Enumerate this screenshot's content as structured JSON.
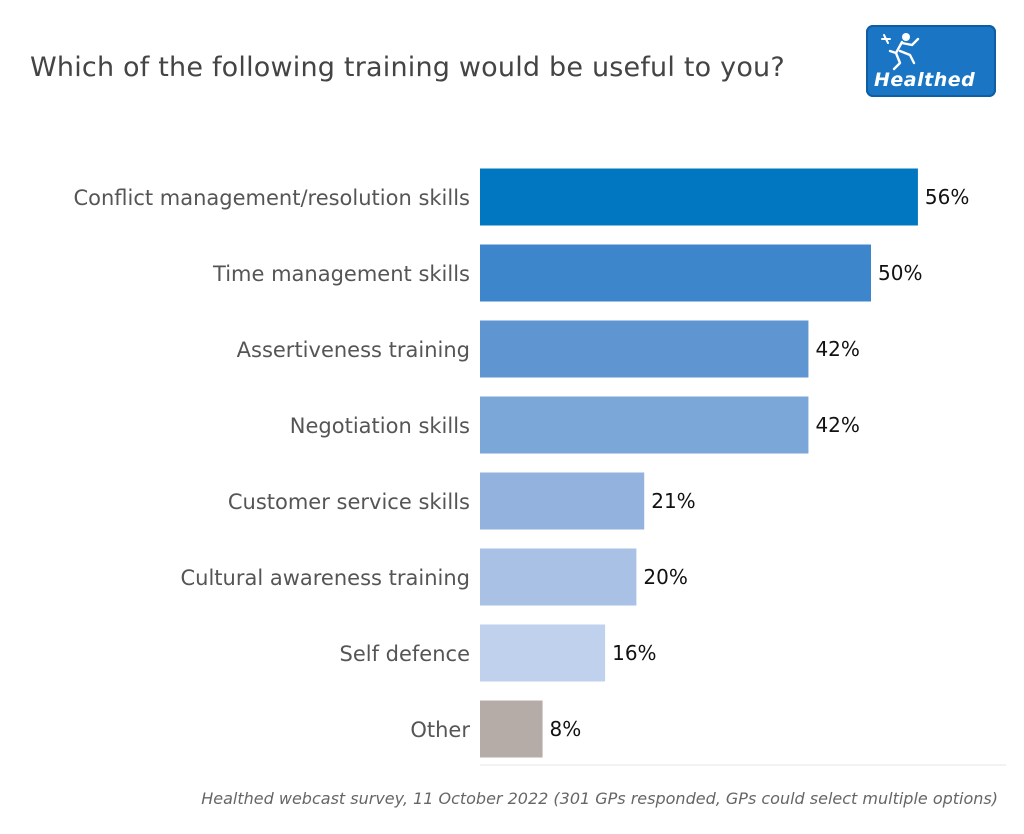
{
  "header": {
    "title": "Which of the following training would be useful to you?",
    "logo_text": "Healthed"
  },
  "source_note": "Healthed webcast survey, 11 October 2022 (301 GPs responded, GPs could select multiple options)",
  "chart_data": {
    "type": "bar",
    "orientation": "horizontal",
    "categories": [
      "Conflict management/resolution skills",
      "Time management skills",
      "Assertiveness training",
      "Negotiation skills",
      "Customer service skills",
      "Cultural awareness training",
      "Self defence",
      "Other"
    ],
    "values": [
      56,
      50,
      42,
      42,
      21,
      20,
      16,
      8
    ],
    "value_labels": [
      "56%",
      "50%",
      "42%",
      "42%",
      "21%",
      "20%",
      "16%",
      "8%"
    ],
    "bar_colors": [
      "#0077c0",
      "#3e86cb",
      "#5f96d2",
      "#7aa6d8",
      "#93b2de",
      "#a9c1e5",
      "#bfd1ec",
      "#b5aca8"
    ],
    "unit": "%",
    "grid": false,
    "legend": "none"
  }
}
